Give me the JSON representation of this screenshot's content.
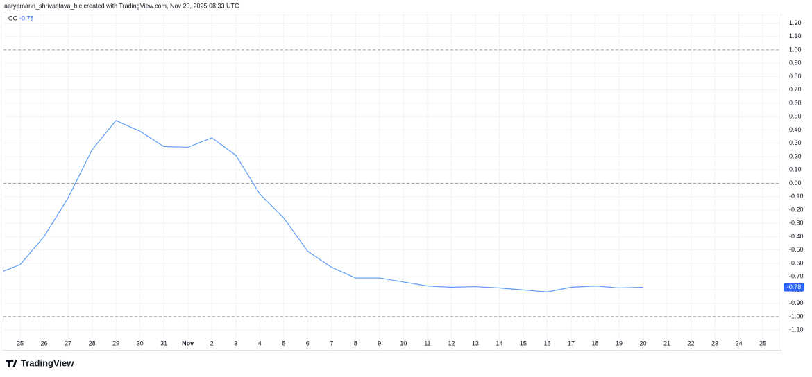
{
  "header": "aaryamann_shrivastava_bic created with TradingView.com, Nov 20, 2025 08:33 UTC",
  "footer": "TradingView",
  "chart_data": {
    "type": "line",
    "legend_name": "CC",
    "legend_value": "-0.78",
    "last_label": "-0.78",
    "categories": [
      null,
      "25",
      "26",
      "27",
      "28",
      "29",
      "30",
      "31",
      "Nov",
      "2",
      "3",
      "4",
      "5",
      "6",
      "7",
      "8",
      "9",
      "10",
      "11",
      "12",
      "13",
      "14",
      "15",
      "16",
      "17",
      "18",
      "19",
      "20",
      "21",
      "22",
      "23",
      "24",
      "25"
    ],
    "series": [
      {
        "name": "CC",
        "color": "#5b9cf6",
        "values": [
          -0.68,
          -0.61,
          -0.4,
          -0.11,
          0.25,
          0.47,
          0.39,
          0.275,
          0.27,
          0.34,
          0.21,
          -0.08,
          -0.26,
          -0.51,
          -0.63,
          -0.71,
          -0.71,
          -0.74,
          -0.77,
          -0.78,
          -0.775,
          -0.785,
          -0.8,
          -0.815,
          -0.78,
          -0.77,
          -0.785,
          -0.78,
          null,
          null,
          null,
          null,
          null
        ]
      }
    ],
    "ylim": [
      -1.25,
      1.28
    ],
    "yticks": [
      {
        "value": -1.1,
        "label": "-1.10"
      },
      {
        "value": -1,
        "label": "-1.00"
      },
      {
        "value": -0.9,
        "label": "-0.90"
      },
      {
        "value": -0.8,
        "label": "-0.80"
      },
      {
        "value": -0.7,
        "label": "-0.70"
      },
      {
        "value": -0.6,
        "label": "-0.60"
      },
      {
        "value": -0.5,
        "label": "-0.50"
      },
      {
        "value": -0.4,
        "label": "-0.40"
      },
      {
        "value": -0.3,
        "label": "-0.30"
      },
      {
        "value": -0.2,
        "label": "-0.20"
      },
      {
        "value": -0.1,
        "label": "-0.10"
      },
      {
        "value": 0,
        "label": "0.00"
      },
      {
        "value": 0.1,
        "label": "0.10"
      },
      {
        "value": 0.2,
        "label": "0.20"
      },
      {
        "value": 0.3,
        "label": "0.30"
      },
      {
        "value": 0.4,
        "label": "0.40"
      },
      {
        "value": 0.5,
        "label": "0.50"
      },
      {
        "value": 0.6,
        "label": "0.60"
      },
      {
        "value": 0.7,
        "label": "0.70"
      },
      {
        "value": 0.8,
        "label": "0.80"
      },
      {
        "value": 0.9,
        "label": "0.90"
      },
      {
        "value": 1,
        "label": "1.00"
      },
      {
        "value": 1.1,
        "label": "1.10"
      },
      {
        "value": 1.2,
        "label": "1.20"
      }
    ],
    "bands": [
      1,
      0,
      -1
    ],
    "grid": true
  }
}
